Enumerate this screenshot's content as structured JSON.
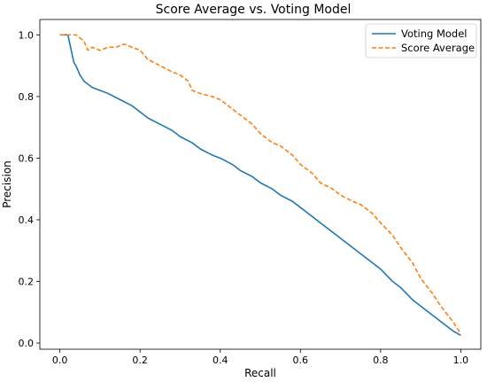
{
  "chart_data": {
    "type": "line",
    "title": "Score Average vs. Voting Model",
    "xlabel": "Recall",
    "ylabel": "Precision",
    "xlim": [
      -0.05,
      1.05
    ],
    "ylim": [
      -0.02,
      1.05
    ],
    "xticks": [
      0.0,
      0.2,
      0.4,
      0.6,
      0.8,
      1.0
    ],
    "xtick_labels": [
      "0.0",
      "0.2",
      "0.4",
      "0.6",
      "0.8",
      "1.0"
    ],
    "yticks": [
      0.0,
      0.2,
      0.4,
      0.6,
      0.8,
      1.0
    ],
    "ytick_labels": [
      "0.0",
      "0.2",
      "0.4",
      "0.6",
      "0.8",
      "1.0"
    ],
    "grid": false,
    "legend_position": "upper right",
    "series": [
      {
        "name": "Voting Model",
        "color": "#1f77b4",
        "style": "solid",
        "x": [
          0.0,
          0.02,
          0.025,
          0.03,
          0.035,
          0.04,
          0.05,
          0.06,
          0.07,
          0.08,
          0.1,
          0.12,
          0.15,
          0.18,
          0.2,
          0.22,
          0.25,
          0.28,
          0.3,
          0.33,
          0.35,
          0.38,
          0.4,
          0.43,
          0.45,
          0.48,
          0.5,
          0.53,
          0.55,
          0.58,
          0.6,
          0.63,
          0.65,
          0.68,
          0.7,
          0.73,
          0.75,
          0.78,
          0.8,
          0.83,
          0.85,
          0.88,
          0.9,
          0.93,
          0.95,
          0.98,
          1.0
        ],
        "y": [
          1.0,
          1.0,
          0.97,
          0.94,
          0.91,
          0.9,
          0.87,
          0.85,
          0.84,
          0.83,
          0.82,
          0.81,
          0.79,
          0.77,
          0.75,
          0.73,
          0.71,
          0.69,
          0.67,
          0.65,
          0.63,
          0.61,
          0.6,
          0.58,
          0.56,
          0.54,
          0.52,
          0.5,
          0.48,
          0.46,
          0.44,
          0.41,
          0.39,
          0.36,
          0.34,
          0.31,
          0.29,
          0.26,
          0.24,
          0.2,
          0.18,
          0.14,
          0.12,
          0.09,
          0.07,
          0.04,
          0.025
        ]
      },
      {
        "name": "Score Average",
        "color": "#ff7f0e",
        "style": "dashed",
        "x": [
          0.0,
          0.04,
          0.06,
          0.07,
          0.08,
          0.1,
          0.12,
          0.14,
          0.16,
          0.18,
          0.2,
          0.22,
          0.25,
          0.28,
          0.3,
          0.32,
          0.33,
          0.35,
          0.38,
          0.4,
          0.42,
          0.45,
          0.48,
          0.5,
          0.53,
          0.55,
          0.58,
          0.6,
          0.63,
          0.65,
          0.68,
          0.7,
          0.73,
          0.75,
          0.78,
          0.8,
          0.83,
          0.85,
          0.88,
          0.9,
          0.93,
          0.95,
          0.98,
          1.0
        ],
        "y": [
          1.0,
          1.0,
          0.98,
          0.95,
          0.96,
          0.95,
          0.96,
          0.96,
          0.97,
          0.96,
          0.95,
          0.92,
          0.9,
          0.88,
          0.87,
          0.85,
          0.82,
          0.81,
          0.8,
          0.79,
          0.77,
          0.74,
          0.71,
          0.68,
          0.65,
          0.64,
          0.61,
          0.58,
          0.55,
          0.52,
          0.5,
          0.48,
          0.46,
          0.45,
          0.42,
          0.39,
          0.35,
          0.31,
          0.26,
          0.21,
          0.16,
          0.12,
          0.07,
          0.03
        ]
      }
    ]
  }
}
